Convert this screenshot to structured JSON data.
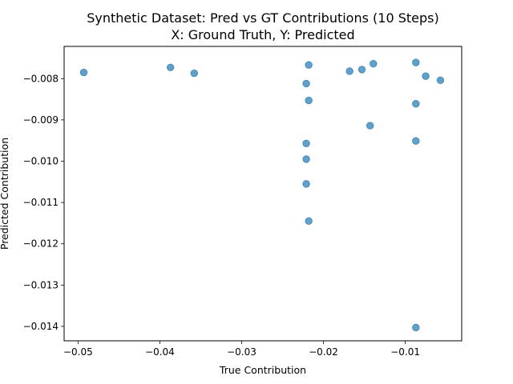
{
  "chart_data": {
    "type": "scatter",
    "title": "Synthetic Dataset: Pred vs GT Contributions (10 Steps)",
    "subtitle": "X: Ground Truth, Y: Predicted",
    "xlabel": "True Contribution",
    "ylabel": "Predicted Contribution",
    "xlim": [
      -0.0517,
      -0.0031
    ],
    "ylim": [
      -0.01435,
      -0.00722
    ],
    "xticks": [
      {
        "value": -0.05,
        "label": "−0.05"
      },
      {
        "value": -0.04,
        "label": "−0.04"
      },
      {
        "value": -0.03,
        "label": "−0.03"
      },
      {
        "value": -0.02,
        "label": "−0.02"
      },
      {
        "value": -0.01,
        "label": "−0.01"
      }
    ],
    "yticks": [
      {
        "value": -0.008,
        "label": "−0.008"
      },
      {
        "value": -0.009,
        "label": "−0.009"
      },
      {
        "value": -0.01,
        "label": "−0.010"
      },
      {
        "value": -0.011,
        "label": "−0.011"
      },
      {
        "value": -0.012,
        "label": "−0.012"
      },
      {
        "value": -0.013,
        "label": "−0.013"
      },
      {
        "value": -0.014,
        "label": "−0.014"
      }
    ],
    "grid": false,
    "legend": "none",
    "marker_color": "#1f77b4",
    "points": [
      {
        "x": -0.0493,
        "y": -0.00785
      },
      {
        "x": -0.0387,
        "y": -0.00773
      },
      {
        "x": -0.0358,
        "y": -0.00787
      },
      {
        "x": -0.0218,
        "y": -0.00767
      },
      {
        "x": -0.0221,
        "y": -0.00812
      },
      {
        "x": -0.0218,
        "y": -0.00853
      },
      {
        "x": -0.0168,
        "y": -0.00782
      },
      {
        "x": -0.0153,
        "y": -0.00778
      },
      {
        "x": -0.0139,
        "y": -0.00764
      },
      {
        "x": -0.0087,
        "y": -0.00761
      },
      {
        "x": -0.0075,
        "y": -0.00794
      },
      {
        "x": -0.0057,
        "y": -0.00804
      },
      {
        "x": -0.0087,
        "y": -0.00861
      },
      {
        "x": -0.0143,
        "y": -0.00914
      },
      {
        "x": -0.0221,
        "y": -0.00957
      },
      {
        "x": -0.0087,
        "y": -0.00951
      },
      {
        "x": -0.0221,
        "y": -0.00995
      },
      {
        "x": -0.0221,
        "y": -0.01055
      },
      {
        "x": -0.0218,
        "y": -0.01145
      },
      {
        "x": -0.0087,
        "y": -0.01403
      }
    ]
  }
}
